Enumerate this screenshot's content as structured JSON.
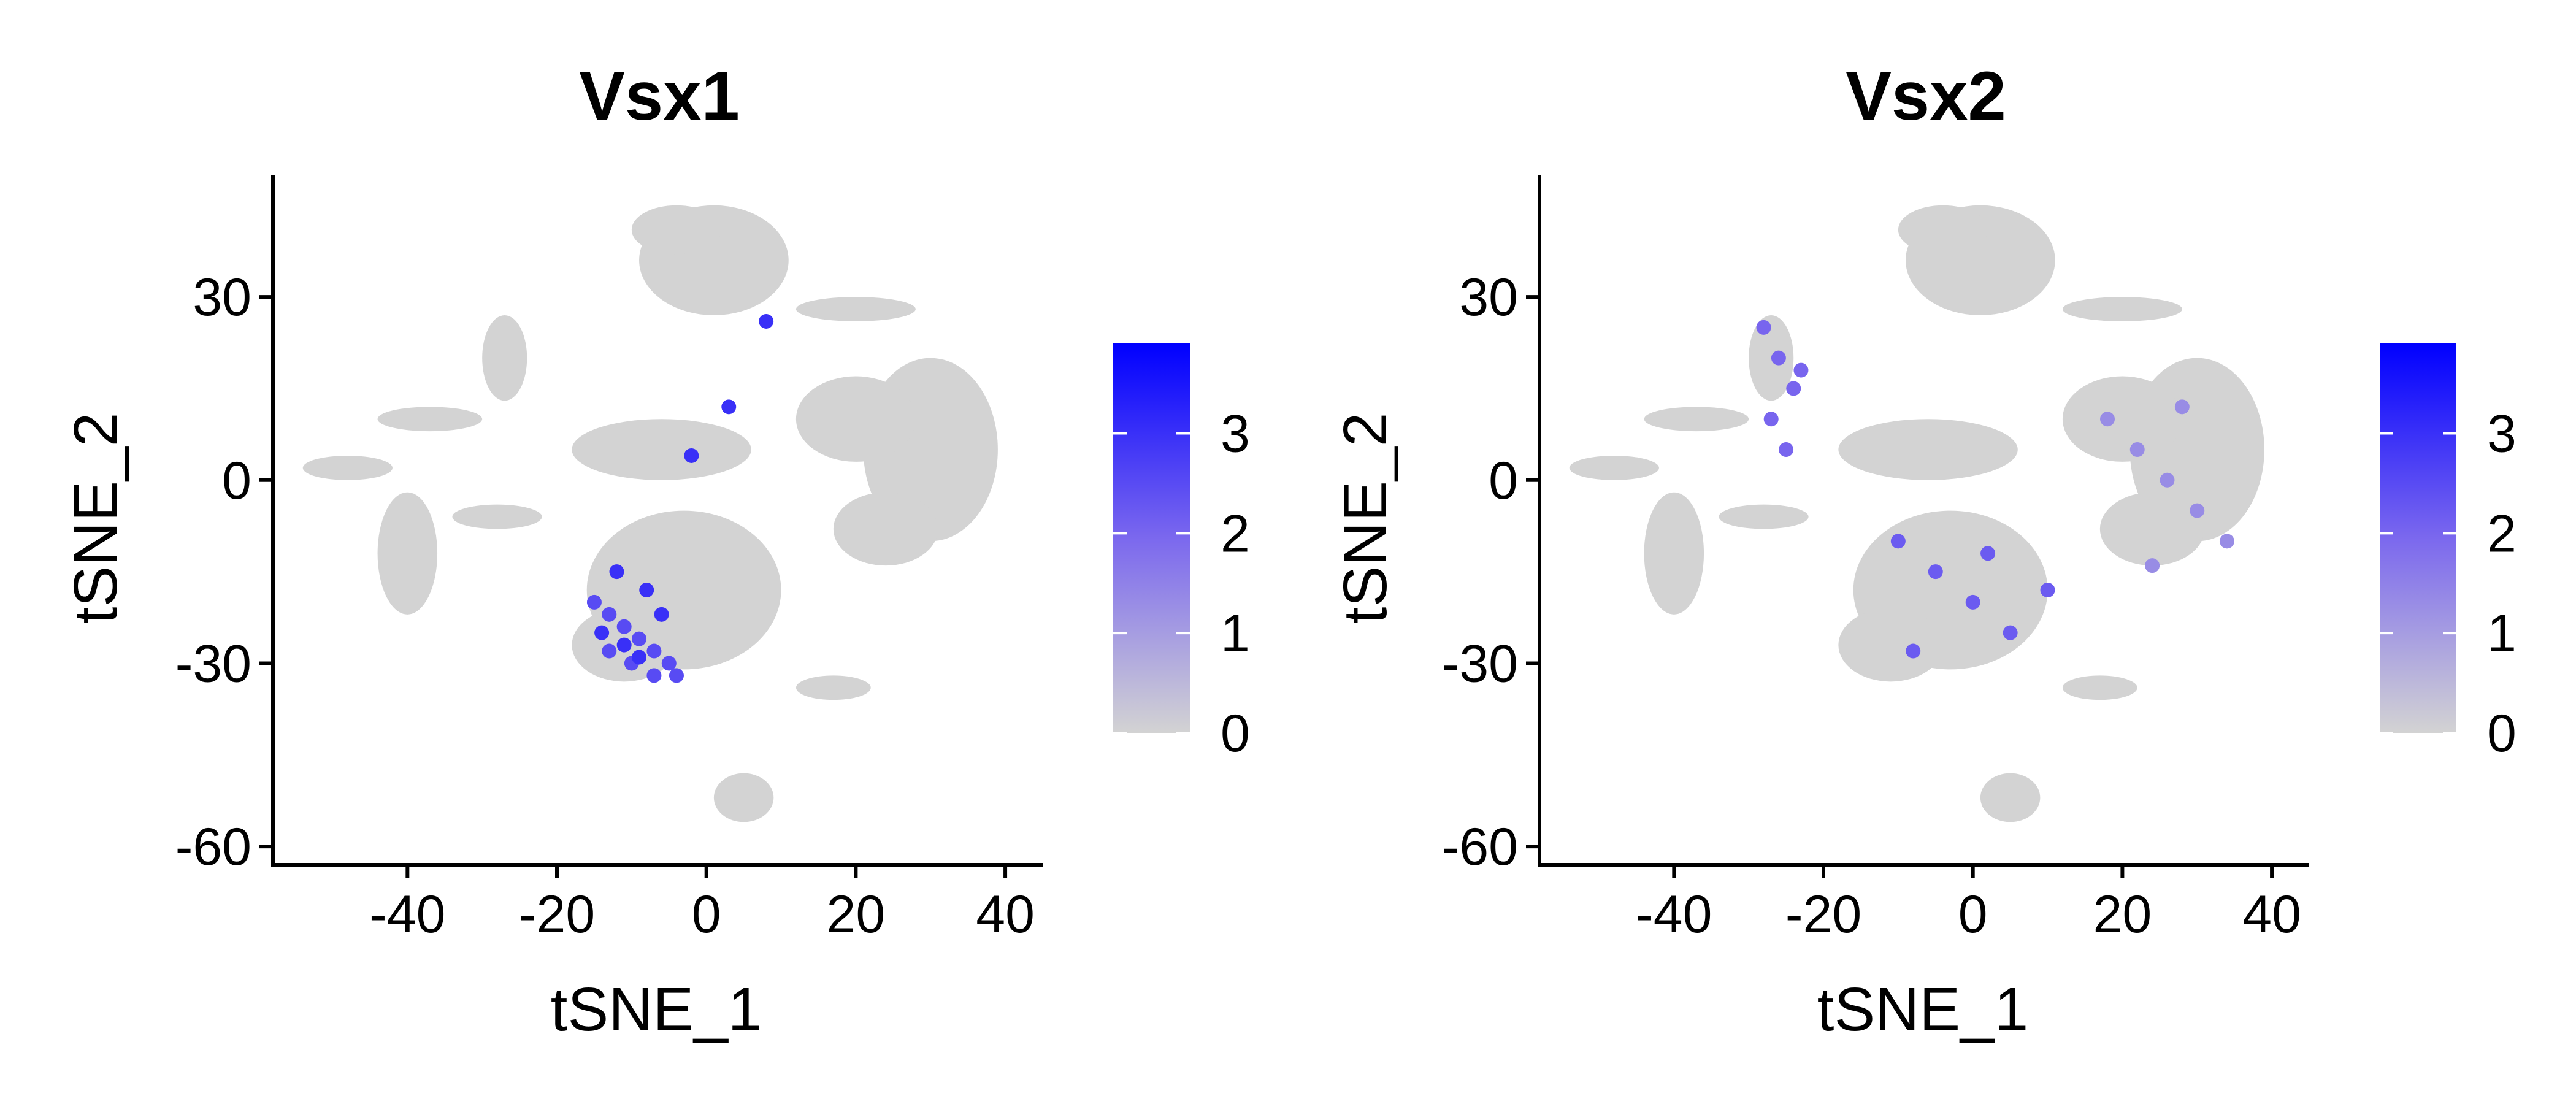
{
  "chart_data": [
    {
      "type": "scatter",
      "title": "Vsx1",
      "xlabel": "tSNE_1",
      "ylabel": "tSNE_2",
      "xlim": [
        -58,
        45
      ],
      "ylim": [
        -63,
        50
      ],
      "x_ticks": [
        -40,
        -20,
        0,
        20,
        40
      ],
      "y_ticks": [
        -60,
        -30,
        0,
        30
      ],
      "x_tick_labels": [
        "-40",
        "-20",
        "0",
        "20",
        "40"
      ],
      "y_tick_labels": [
        "-60",
        "-30",
        "0",
        "30"
      ],
      "grid": false,
      "color_scale": {
        "low": "#d3d3d3",
        "high": "#0000ff",
        "min": 0,
        "max": 3.9,
        "ticks": [
          0,
          1,
          2,
          3
        ],
        "tick_labels": [
          "0",
          "1",
          "2",
          "3"
        ]
      },
      "legend_position": "right",
      "series": [
        {
          "x": [
            -15,
            -13,
            -11,
            -9,
            -7,
            -5,
            -4,
            -13,
            -10,
            -7
          ],
          "y": [
            -20,
            -22,
            -24,
            -26,
            -28,
            -30,
            -32,
            -28,
            -30,
            -32
          ],
          "value": 2.5
        },
        {
          "x": [
            -12,
            -8,
            -6,
            -14,
            -11,
            -9,
            8,
            3,
            -2
          ],
          "y": [
            -15,
            -18,
            -22,
            -25,
            -27,
            -29,
            26,
            12,
            4
          ],
          "value": 3.0
        }
      ]
    },
    {
      "type": "scatter",
      "title": "Vsx2",
      "xlabel": "tSNE_1",
      "ylabel": "tSNE_2",
      "xlim": [
        -58,
        45
      ],
      "ylim": [
        -63,
        50
      ],
      "x_ticks": [
        -40,
        -20,
        0,
        20,
        40
      ],
      "y_ticks": [
        -60,
        -30,
        0,
        30
      ],
      "x_tick_labels": [
        "-40",
        "-20",
        "0",
        "20",
        "40"
      ],
      "y_tick_labels": [
        "-60",
        "-30",
        "0",
        "30"
      ],
      "grid": false,
      "color_scale": {
        "low": "#d3d3d3",
        "high": "#0000ff",
        "min": 0,
        "max": 3.9,
        "ticks": [
          0,
          1,
          2,
          3
        ],
        "tick_labels": [
          "0",
          "1",
          "2",
          "3"
        ]
      },
      "legend_position": "right",
      "series": [
        {
          "x": [
            -28,
            -26,
            -24,
            -27,
            -25,
            -23
          ],
          "y": [
            25,
            20,
            15,
            10,
            5,
            18
          ],
          "value": 2.0
        },
        {
          "x": [
            -10,
            -5,
            0,
            5,
            10,
            -8,
            2
          ],
          "y": [
            -10,
            -15,
            -20,
            -25,
            -18,
            -28,
            -12
          ],
          "value": 2.2
        },
        {
          "x": [
            18,
            22,
            26,
            30,
            34,
            28,
            24
          ],
          "y": [
            10,
            5,
            0,
            -5,
            -10,
            12,
            -14
          ],
          "value": 1.3
        }
      ]
    }
  ]
}
